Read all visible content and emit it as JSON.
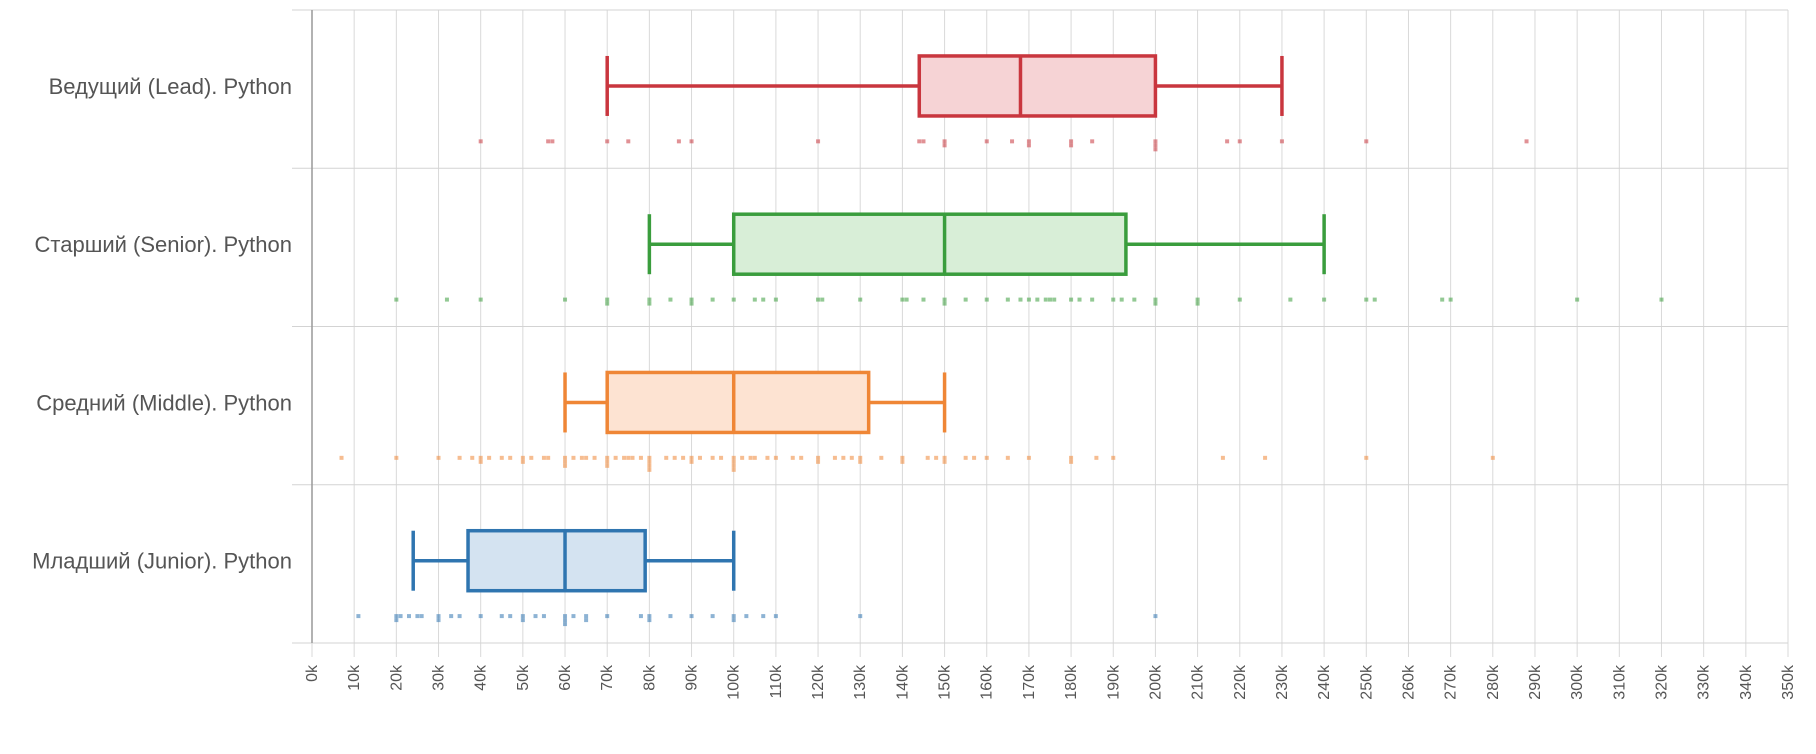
{
  "chart_data": {
    "type": "boxplot",
    "title": "",
    "xlabel": "",
    "ylabel": "",
    "xlim": [
      0,
      350000
    ],
    "x_ticks": [
      "0k",
      "10k",
      "20k",
      "30k",
      "40k",
      "50k",
      "60k",
      "70k",
      "80k",
      "90k",
      "100k",
      "110k",
      "120k",
      "130k",
      "140k",
      "150k",
      "160k",
      "170k",
      "180k",
      "190k",
      "200k",
      "210k",
      "220k",
      "230k",
      "240k",
      "250k",
      "260k",
      "270k",
      "280k",
      "290k",
      "300k",
      "310k",
      "320k",
      "330k",
      "340k",
      "350k"
    ],
    "x_tick_values": [
      0,
      10000,
      20000,
      30000,
      40000,
      50000,
      60000,
      70000,
      80000,
      90000,
      100000,
      110000,
      120000,
      130000,
      140000,
      150000,
      160000,
      170000,
      180000,
      190000,
      200000,
      210000,
      220000,
      230000,
      240000,
      250000,
      260000,
      270000,
      280000,
      290000,
      300000,
      310000,
      320000,
      330000,
      340000,
      350000
    ],
    "grid": true,
    "series": [
      {
        "name": "Ведущий (Lead). Python",
        "color": "#c9363e",
        "fill": "#f6d3d5",
        "whisker_low": 70000,
        "q1": 144000,
        "median": 168000,
        "q3": 200000,
        "whisker_high": 230000,
        "points": [
          40000,
          56000,
          57000,
          70000,
          75000,
          87000,
          90000,
          120000,
          144000,
          145000,
          150000,
          150000,
          160000,
          166000,
          170000,
          170000,
          180000,
          180000,
          185000,
          200000,
          200000,
          200000,
          217000,
          220000,
          230000,
          250000,
          288000
        ]
      },
      {
        "name": "Старший (Senior). Python",
        "color": "#3a9d3d",
        "fill": "#d8eed7",
        "whisker_low": 80000,
        "q1": 100000,
        "median": 150000,
        "q3": 193000,
        "whisker_high": 240000,
        "points": [
          20000,
          32000,
          40000,
          60000,
          70000,
          70000,
          80000,
          80000,
          85000,
          90000,
          90000,
          95000,
          100000,
          105000,
          107000,
          110000,
          120000,
          121000,
          130000,
          140000,
          141000,
          145000,
          150000,
          150000,
          155000,
          160000,
          165000,
          168000,
          170000,
          172000,
          174000,
          175000,
          176000,
          180000,
          182000,
          185000,
          190000,
          192000,
          195000,
          200000,
          200000,
          210000,
          210000,
          220000,
          232000,
          240000,
          250000,
          252000,
          268000,
          270000,
          300000,
          320000
        ]
      },
      {
        "name": "Средний (Middle). Python",
        "color": "#ef8636",
        "fill": "#fde3d2",
        "whisker_low": 60000,
        "q1": 70000,
        "median": 100000,
        "q3": 132000,
        "whisker_high": 150000,
        "points": [
          7000,
          20000,
          30000,
          35000,
          38000,
          40000,
          40000,
          42000,
          45000,
          47000,
          50000,
          50000,
          52000,
          55000,
          56000,
          60000,
          60000,
          60000,
          62000,
          64000,
          65000,
          67000,
          70000,
          70000,
          70000,
          72000,
          74000,
          75000,
          76000,
          78000,
          80000,
          80000,
          80000,
          80000,
          84000,
          86000,
          88000,
          90000,
          90000,
          92000,
          95000,
          97000,
          100000,
          100000,
          100000,
          100000,
          102000,
          104000,
          105000,
          108000,
          110000,
          114000,
          116000,
          120000,
          120000,
          124000,
          126000,
          128000,
          130000,
          130000,
          135000,
          140000,
          140000,
          146000,
          148000,
          150000,
          150000,
          155000,
          157000,
          160000,
          165000,
          170000,
          180000,
          180000,
          186000,
          190000,
          216000,
          226000,
          250000,
          280000
        ]
      },
      {
        "name": "Младший (Junior). Python",
        "color": "#2f75b0",
        "fill": "#d4e3f1",
        "whisker_low": 24000,
        "q1": 37000,
        "median": 60000,
        "q3": 79000,
        "whisker_high": 100000,
        "points": [
          11000,
          20000,
          20000,
          21000,
          23000,
          25000,
          26000,
          30000,
          30000,
          33000,
          35000,
          40000,
          45000,
          47000,
          50000,
          50000,
          53000,
          55000,
          60000,
          60000,
          60000,
          62000,
          65000,
          65000,
          70000,
          78000,
          80000,
          80000,
          85000,
          90000,
          95000,
          100000,
          100000,
          103000,
          107000,
          110000,
          130000,
          200000
        ]
      }
    ]
  }
}
